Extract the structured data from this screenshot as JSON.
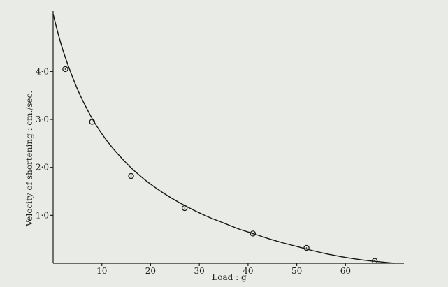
{
  "chart_data": {
    "type": "scatter",
    "title": "",
    "xlabel": "Load : g",
    "ylabel": "Velocity of shortening : cm./sec.",
    "xlim": [
      0,
      72
    ],
    "ylim": [
      0,
      5.2
    ],
    "x_ticks": [
      10,
      20,
      30,
      40,
      50,
      60
    ],
    "x_tick_labels": [
      "10",
      "20",
      "30",
      "40",
      "50",
      "60"
    ],
    "y_ticks": [
      1,
      2,
      3,
      4
    ],
    "y_tick_labels": [
      "1·0",
      "2·0",
      "3·0",
      "4·0"
    ],
    "grid": false,
    "series": [
      {
        "points": [
          {
            "x": 2.5,
            "y": 4.05
          },
          {
            "x": 8.0,
            "y": 2.95
          },
          {
            "x": 16.0,
            "y": 1.82
          },
          {
            "x": 27.0,
            "y": 1.15
          },
          {
            "x": 41.0,
            "y": 0.62
          },
          {
            "x": 52.0,
            "y": 0.32
          },
          {
            "x": 66.0,
            "y": 0.05
          }
        ]
      }
    ],
    "fitted_curve": {
      "x": [
        0,
        1,
        2,
        3,
        4,
        5,
        6,
        8,
        10,
        12,
        14,
        16,
        18,
        20,
        23,
        26,
        29,
        32,
        35,
        38,
        41,
        44,
        47,
        50,
        53,
        56,
        59,
        62,
        65,
        68,
        70
      ],
      "y": [
        5.2,
        4.8,
        4.45,
        4.15,
        3.88,
        3.63,
        3.41,
        3.02,
        2.7,
        2.43,
        2.2,
        1.99,
        1.81,
        1.65,
        1.44,
        1.26,
        1.1,
        0.96,
        0.84,
        0.72,
        0.62,
        0.52,
        0.43,
        0.35,
        0.27,
        0.2,
        0.14,
        0.09,
        0.05,
        0.02,
        0.0
      ]
    }
  }
}
